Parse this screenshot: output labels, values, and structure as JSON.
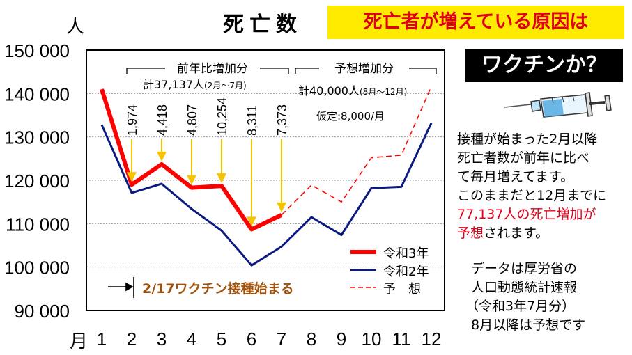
{
  "chart_data": {
    "type": "line",
    "title": "死亡数",
    "ylabel": "人",
    "xlabel": "月",
    "ylim": [
      90000,
      150000
    ],
    "y_ticks": [
      "150 000",
      "140 000",
      "130 000",
      "120 000",
      "110 000",
      "100 000",
      "90 000"
    ],
    "categories": [
      "1",
      "2",
      "3",
      "4",
      "5",
      "6",
      "7",
      "8",
      "9",
      "10",
      "11",
      "12"
    ],
    "series": [
      {
        "name": "令和3年",
        "color": "#ff0000",
        "x": [
          1,
          2,
          3,
          4,
          5,
          6,
          7
        ],
        "values": [
          141000,
          119000,
          123700,
          118300,
          118700,
          108700,
          112000
        ]
      },
      {
        "name": "令和2年",
        "color": "#0a1a80",
        "x": [
          1,
          2,
          3,
          4,
          5,
          6,
          7,
          8,
          9,
          10,
          11,
          12
        ],
        "values": [
          132800,
          117100,
          119200,
          113400,
          108400,
          100400,
          104700,
          111500,
          107400,
          118200,
          118500,
          133200
        ]
      },
      {
        "name": "予　想",
        "color": "#ff0000",
        "dashed": true,
        "x": [
          7,
          8,
          9,
          10,
          11,
          12
        ],
        "values": [
          112000,
          118900,
          115000,
          125200,
          125800,
          141600
        ]
      }
    ],
    "increase_labels": [
      "1,974",
      "4,418",
      "4,807",
      "10,254",
      "8,311",
      "7,373"
    ],
    "grid": true,
    "legend_position": "bottom-right"
  },
  "annotations": {
    "bracket1_title": "前年比増加分",
    "bracket1_total": "計37,137人",
    "bracket1_period": "(2月～7月)",
    "bracket2_title": "予想増加分",
    "bracket2_total": "計40,000人",
    "bracket2_period": "(8月～12月)",
    "assumption": "仮定:8,000/月",
    "vaccine_start": "2/17ワクチン接種始まる"
  },
  "banner": {
    "line1": "死亡者が増えている原因は",
    "line2": "ワクチンか？"
  },
  "side_text": {
    "line1": "接種が始まった2月以降",
    "line2": "死亡者数が前年に比べ",
    "line3": "て毎月増えてます。",
    "line4": "このままだと12月までに",
    "line5_red": "77,137人の死亡増加が",
    "line6_red": "予想",
    "line6_rest": "されます。",
    "source1": "データは厚労省の",
    "source2": "人口動態統計速報",
    "source3": "（令和3年7月分）",
    "source4": "8月以降は予想です"
  },
  "colors": {
    "red": "#ff0000",
    "navy": "#0a1a80",
    "arrow": "#f5c400",
    "banner_bg": "#ffeb00",
    "banner_text": "#e0001b",
    "vaccine_text": "#a0520a"
  }
}
